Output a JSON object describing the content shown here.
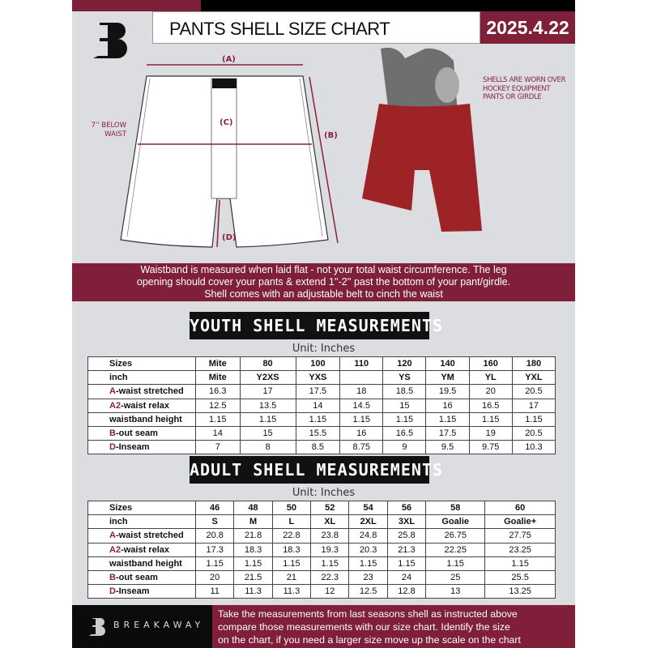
{
  "header": {
    "title": "PANTS SHELL SIZE CHART",
    "date": "2025.4.22",
    "logo_letter": "B"
  },
  "diagram": {
    "label_a": "(A)",
    "label_b": "(B)",
    "label_c": "(C)",
    "label_d": "(D)",
    "c_note_line1": "7'' BELOW",
    "c_note_line2": "WAIST",
    "photo_note": "SHELLS ARE WORN OVER HOCKEY EQUIPMENT PANTS OR GIRDLE"
  },
  "banner": {
    "lines": [
      "Waistband is measured when laid flat - not your total waist circumference. The leg",
      "opening should cover your pants & extend 1''-2'' past the bottom of your pant/girdle.",
      "Shell comes with an adjustable belt to cinch the waist"
    ]
  },
  "youth": {
    "title": "YOUTH SHELL MEASUREMENTS",
    "unit": "Unit: Inches",
    "rows": [
      {
        "prefix": "",
        "label": "Sizes",
        "values": [
          "Mite",
          "80",
          "100",
          "110",
          "120",
          "140",
          "160",
          "180"
        ]
      },
      {
        "prefix": "",
        "label": "inch",
        "values": [
          "Mite",
          "Y2XS",
          "YXS",
          "",
          "YS",
          "YM",
          "YL",
          "YXL"
        ]
      },
      {
        "prefix": "A",
        "label": "-waist stretched",
        "values": [
          "16.3",
          "17",
          "17.5",
          "18",
          "18.5",
          "19.5",
          "20",
          "20.5"
        ]
      },
      {
        "prefix": "A2",
        "label": "-waist relax",
        "values": [
          "12.5",
          "13.5",
          "14",
          "14.5",
          "15",
          "16",
          "16.5",
          "17"
        ]
      },
      {
        "prefix": "",
        "label": "waistband height",
        "values": [
          "1.15",
          "1.15",
          "1.15",
          "1.15",
          "1.15",
          "1.15",
          "1.15",
          "1.15"
        ]
      },
      {
        "prefix": "B",
        "label": "-out seam",
        "values": [
          "14",
          "15",
          "15.5",
          "16",
          "16.5",
          "17.5",
          "19",
          "20.5"
        ]
      },
      {
        "prefix": "D",
        "label": "-Inseam",
        "values": [
          "7",
          "8",
          "8.5",
          "8.75",
          "9",
          "9.5",
          "9.75",
          "10.3"
        ]
      }
    ]
  },
  "adult": {
    "title": "ADULT SHELL MEASUREMENTS",
    "unit": "Unit: Inches",
    "rows": [
      {
        "prefix": "",
        "label": "Sizes",
        "values": [
          "46",
          "48",
          "50",
          "52",
          "54",
          "56",
          "58",
          "60"
        ]
      },
      {
        "prefix": "",
        "label": "inch",
        "values": [
          "S",
          "M",
          "L",
          "XL",
          "2XL",
          "3XL",
          "Goalie",
          "Goalie+"
        ]
      },
      {
        "prefix": "A",
        "label": "-waist stretched",
        "values": [
          "20.8",
          "21.8",
          "22.8",
          "23.8",
          "24.8",
          "25.8",
          "26.75",
          "27.75"
        ]
      },
      {
        "prefix": "A2",
        "label": "-waist relax",
        "values": [
          "17.3",
          "18.3",
          "18.3",
          "19.3",
          "20.3",
          "21.3",
          "22.25",
          "23.25"
        ]
      },
      {
        "prefix": "",
        "label": "waistband height",
        "values": [
          "1.15",
          "1.15",
          "1.15",
          "1.15",
          "1.15",
          "1.15",
          "1.15",
          "1.15"
        ]
      },
      {
        "prefix": "B",
        "label": "-out seam",
        "values": [
          "20",
          "21.5",
          "21",
          "22.3",
          "23",
          "24",
          "25",
          "25.5"
        ]
      },
      {
        "prefix": "D",
        "label": "-Inseam",
        "values": [
          "11",
          "11.3",
          "11.3",
          "12",
          "12.5",
          "12.8",
          "13",
          "13.25"
        ]
      }
    ]
  },
  "footer": {
    "brand": "BREAKAWAY",
    "lines": [
      "Take the measurements from last seasons shell as instructed above",
      "compare those measurements  with our size chart. Identify the size",
      "on the chart, if you need a larger size move up the scale on the chart"
    ]
  },
  "colors": {
    "maroon": "#7f1f3a",
    "black": "#0b0b0b",
    "background": "#dcdde1"
  }
}
